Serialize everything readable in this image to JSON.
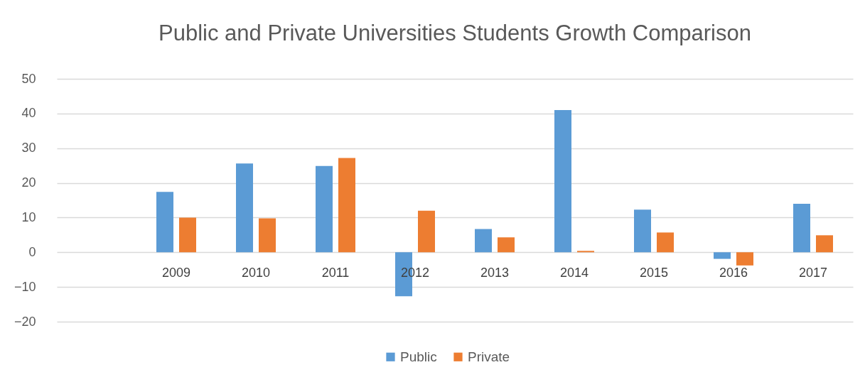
{
  "chart_data": {
    "type": "bar",
    "title": "Public and Private Universities Students Growth Comparison",
    "categories": [
      null,
      "2009",
      "2010",
      "2011",
      "2012",
      "2013",
      "2014",
      "2015",
      "2016",
      "2017"
    ],
    "series": [
      {
        "name": "Public",
        "color": "#5b9bd5",
        "values": [
          null,
          17.4,
          25.6,
          24.9,
          -12.7,
          6.7,
          41.0,
          12.3,
          -1.9,
          14.0
        ]
      },
      {
        "name": "Private",
        "color": "#ed7d31",
        "values": [
          null,
          10.0,
          9.8,
          27.2,
          12.0,
          4.3,
          0.4,
          5.7,
          -3.8,
          4.9
        ]
      }
    ],
    "ylim": [
      -20,
      50
    ],
    "yticks": [
      -20,
      -10,
      0,
      10,
      20,
      30,
      40,
      50
    ],
    "grid": "y",
    "legend": "bottom"
  }
}
